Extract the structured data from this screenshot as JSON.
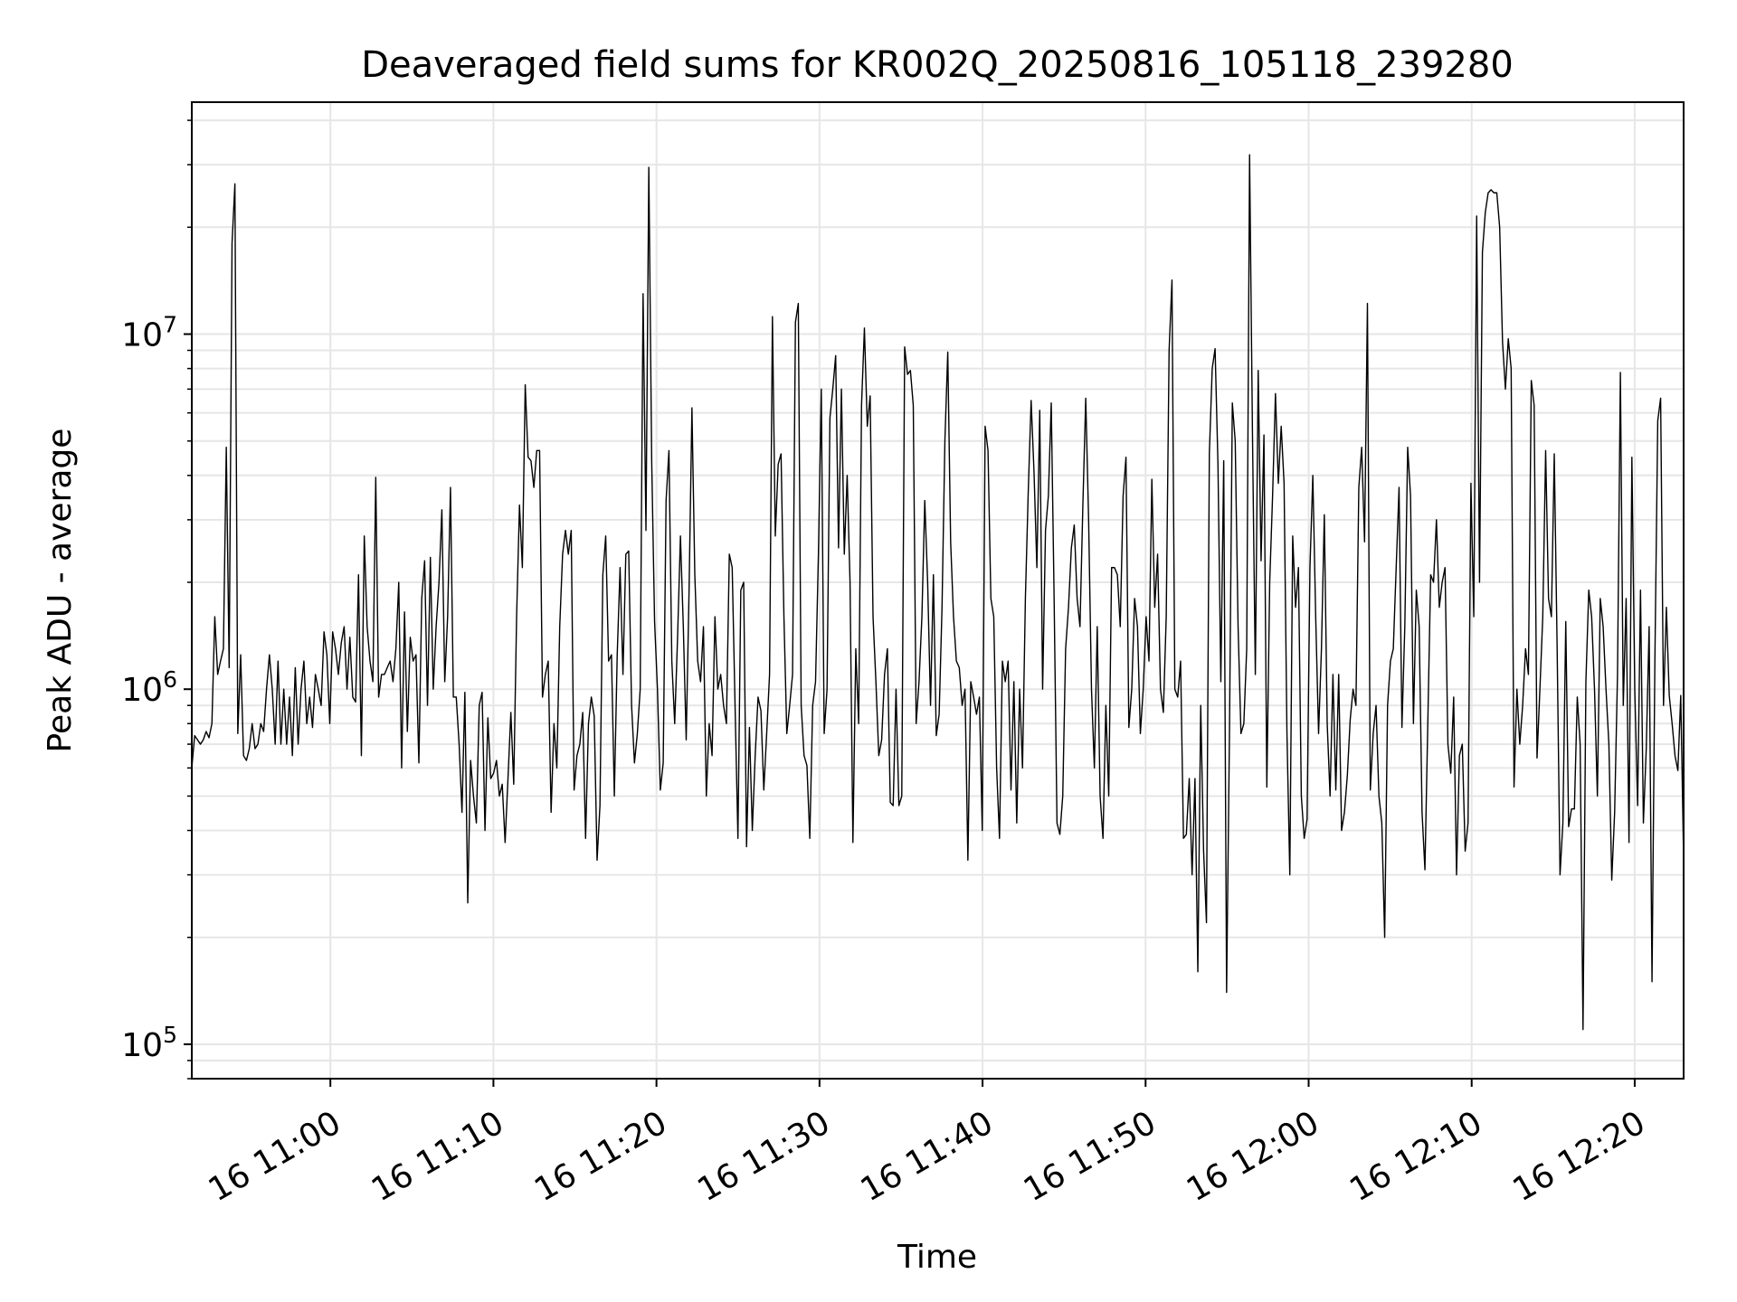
{
  "chart_data": {
    "type": "line",
    "title": "Deaveraged field sums for KR002Q_20250816_105118_239280",
    "xlabel": "Time",
    "ylabel": "Peak ADU - average",
    "x_start": "16 10:51:30",
    "x_end": "16 12:23:00",
    "x_ticks": [
      {
        "t": "16 11:00",
        "label": "16 11:00"
      },
      {
        "t": "16 11:10",
        "label": "16 11:10"
      },
      {
        "t": "16 11:20",
        "label": "16 11:20"
      },
      {
        "t": "16 11:30",
        "label": "16 11:30"
      },
      {
        "t": "16 11:40",
        "label": "16 11:40"
      },
      {
        "t": "16 11:50",
        "label": "16 11:50"
      },
      {
        "t": "16 12:00",
        "label": "16 12:00"
      },
      {
        "t": "16 12:10",
        "label": "16 12:10"
      },
      {
        "t": "16 12:20",
        "label": "16 12:20"
      }
    ],
    "y_scale": "log",
    "ylim": [
      80000,
      45000000
    ],
    "y_ticks": [
      {
        "value": 100000,
        "base": "10",
        "exp": "5"
      },
      {
        "value": 1000000,
        "base": "10",
        "exp": "6"
      },
      {
        "value": 10000000,
        "base": "10",
        "exp": "7"
      }
    ],
    "grid": true,
    "line_color": "#000000",
    "series": [
      {
        "time_start": "16 10:51:30",
        "time_end": "16 12:23:00",
        "values": [
          600000,
          740000,
          720000,
          700000,
          720000,
          760000,
          730000,
          800000,
          1600000,
          1100000,
          1200000,
          1300000,
          4800000,
          1150000,
          18000000,
          26500000,
          750000,
          1250000,
          650000,
          630000,
          680000,
          800000,
          680000,
          700000,
          800000,
          760000,
          1000000,
          1250000,
          1000000,
          700000,
          1200000,
          700000,
          1000000,
          700000,
          950000,
          650000,
          1150000,
          700000,
          1000000,
          1200000,
          800000,
          950000,
          780000,
          1100000,
          1000000,
          900000,
          1450000,
          1250000,
          800000,
          1450000,
          1300000,
          1100000,
          1350000,
          1500000,
          1000000,
          1400000,
          950000,
          920000,
          2100000,
          650000,
          2700000,
          1500000,
          1200000,
          1050000,
          3950000,
          950000,
          1100000,
          1100000,
          1150000,
          1200000,
          1050000,
          1300000,
          2000000,
          600000,
          1650000,
          760000,
          1400000,
          1200000,
          1250000,
          620000,
          1800000,
          2300000,
          900000,
          2350000,
          1000000,
          1500000,
          2000000,
          3200000,
          1050000,
          1600000,
          3700000,
          950000,
          950000,
          700000,
          450000,
          980000,
          250000,
          630000,
          500000,
          420000,
          900000,
          980000,
          400000,
          830000,
          560000,
          580000,
          630000,
          500000,
          540000,
          370000,
          560000,
          860000,
          540000,
          1600000,
          3300000,
          2200000,
          7200000,
          4500000,
          4400000,
          3700000,
          4700000,
          4700000,
          950000,
          1100000,
          1200000,
          450000,
          800000,
          600000,
          1500000,
          2400000,
          2800000,
          2400000,
          2800000,
          520000,
          650000,
          700000,
          860000,
          380000,
          800000,
          950000,
          840000,
          330000,
          470000,
          2100000,
          2700000,
          1200000,
          1250000,
          500000,
          1250000,
          2200000,
          1100000,
          2400000,
          2450000,
          900000,
          620000,
          750000,
          1000000,
          13000000,
          2800000,
          29500000,
          4400000,
          1550000,
          1000000,
          520000,
          620000,
          3400000,
          4700000,
          1200000,
          800000,
          1400000,
          2700000,
          1500000,
          720000,
          1900000,
          6200000,
          2100000,
          1200000,
          1050000,
          1500000,
          500000,
          800000,
          650000,
          1600000,
          1000000,
          1100000,
          900000,
          800000,
          2400000,
          2200000,
          900000,
          380000,
          1900000,
          2000000,
          360000,
          780000,
          400000,
          650000,
          950000,
          870000,
          520000,
          750000,
          1100000,
          11200000,
          2700000,
          4300000,
          4600000,
          1600000,
          750000,
          900000,
          1100000,
          10800000,
          12200000,
          900000,
          650000,
          610000,
          380000,
          900000,
          1050000,
          2400000,
          7000000,
          750000,
          1000000,
          5800000,
          7000000,
          8700000,
          2500000,
          7000000,
          2400000,
          4000000,
          2000000,
          370000,
          1300000,
          800000,
          6300000,
          10400000,
          5500000,
          6700000,
          1600000,
          1050000,
          650000,
          720000,
          1100000,
          1300000,
          480000,
          470000,
          1000000,
          470000,
          500000,
          9200000,
          7700000,
          7900000,
          6300000,
          800000,
          1050000,
          1600000,
          3400000,
          2000000,
          900000,
          2100000,
          740000,
          850000,
          1700000,
          5000000,
          8900000,
          2600000,
          1600000,
          1200000,
          1150000,
          900000,
          1000000,
          330000,
          1050000,
          950000,
          850000,
          950000,
          400000,
          5500000,
          4700000,
          1800000,
          1600000,
          600000,
          380000,
          1200000,
          1050000,
          1200000,
          520000,
          1050000,
          420000,
          1000000,
          600000,
          1800000,
          3600000,
          6500000,
          4100000,
          2200000,
          6100000,
          1000000,
          2800000,
          3500000,
          6400000,
          1800000,
          420000,
          390000,
          500000,
          1300000,
          1700000,
          2500000,
          2900000,
          1800000,
          1500000,
          3300000,
          6600000,
          3000000,
          1000000,
          600000,
          1500000,
          500000,
          380000,
          900000,
          500000,
          2200000,
          2200000,
          2100000,
          1500000,
          3500000,
          4500000,
          780000,
          1000000,
          1800000,
          1500000,
          750000,
          1000000,
          1600000,
          1200000,
          3900000,
          1700000,
          2400000,
          1000000,
          860000,
          1600000,
          9000000,
          14200000,
          1000000,
          950000,
          1200000,
          380000,
          390000,
          560000,
          300000,
          560000,
          160000,
          900000,
          350000,
          220000,
          4600000,
          8000000,
          9100000,
          4300000,
          1050000,
          4400000,
          140000,
          750000,
          6400000,
          5000000,
          1500000,
          750000,
          800000,
          1300000,
          32000000,
          5300000,
          1100000,
          7900000,
          2300000,
          5200000,
          530000,
          2000000,
          3500000,
          6800000,
          3800000,
          5500000,
          3800000,
          750000,
          300000,
          2700000,
          1700000,
          2200000,
          500000,
          380000,
          430000,
          2200000,
          4000000,
          1600000,
          750000,
          1300000,
          3100000,
          800000,
          500000,
          1100000,
          520000,
          1100000,
          400000,
          450000,
          570000,
          820000,
          1000000,
          900000,
          3700000,
          4800000,
          2600000,
          12200000,
          520000,
          750000,
          900000,
          500000,
          420000,
          200000,
          900000,
          1200000,
          1300000,
          2200000,
          3700000,
          780000,
          1500000,
          4800000,
          3500000,
          800000,
          1900000,
          1500000,
          450000,
          310000,
          800000,
          2100000,
          2000000,
          3000000,
          1700000,
          2000000,
          2200000,
          700000,
          580000,
          950000,
          300000,
          650000,
          700000,
          350000,
          420000,
          3800000,
          1600000,
          21500000,
          2000000,
          17000000,
          22000000,
          25000000,
          25500000,
          25000000,
          25000000,
          20000000,
          9500000,
          7000000,
          9700000,
          8000000,
          530000,
          1000000,
          700000,
          900000,
          1300000,
          1100000,
          7400000,
          6300000,
          640000,
          1000000,
          1600000,
          4700000,
          1800000,
          1600000,
          4600000,
          1300000,
          300000,
          420000,
          1550000,
          410000,
          460000,
          460000,
          950000,
          700000,
          110000,
          1050000,
          1900000,
          1600000,
          1000000,
          500000,
          1800000,
          1500000,
          1000000,
          700000,
          290000,
          450000,
          1100000,
          7800000,
          900000,
          1800000,
          370000,
          4500000,
          1000000,
          470000,
          1900000,
          420000,
          680000,
          1500000,
          150000,
          1200000,
          5700000,
          6600000,
          900000,
          1700000,
          960000,
          800000,
          650000,
          590000,
          960000,
          330000
        ]
      }
    ]
  }
}
